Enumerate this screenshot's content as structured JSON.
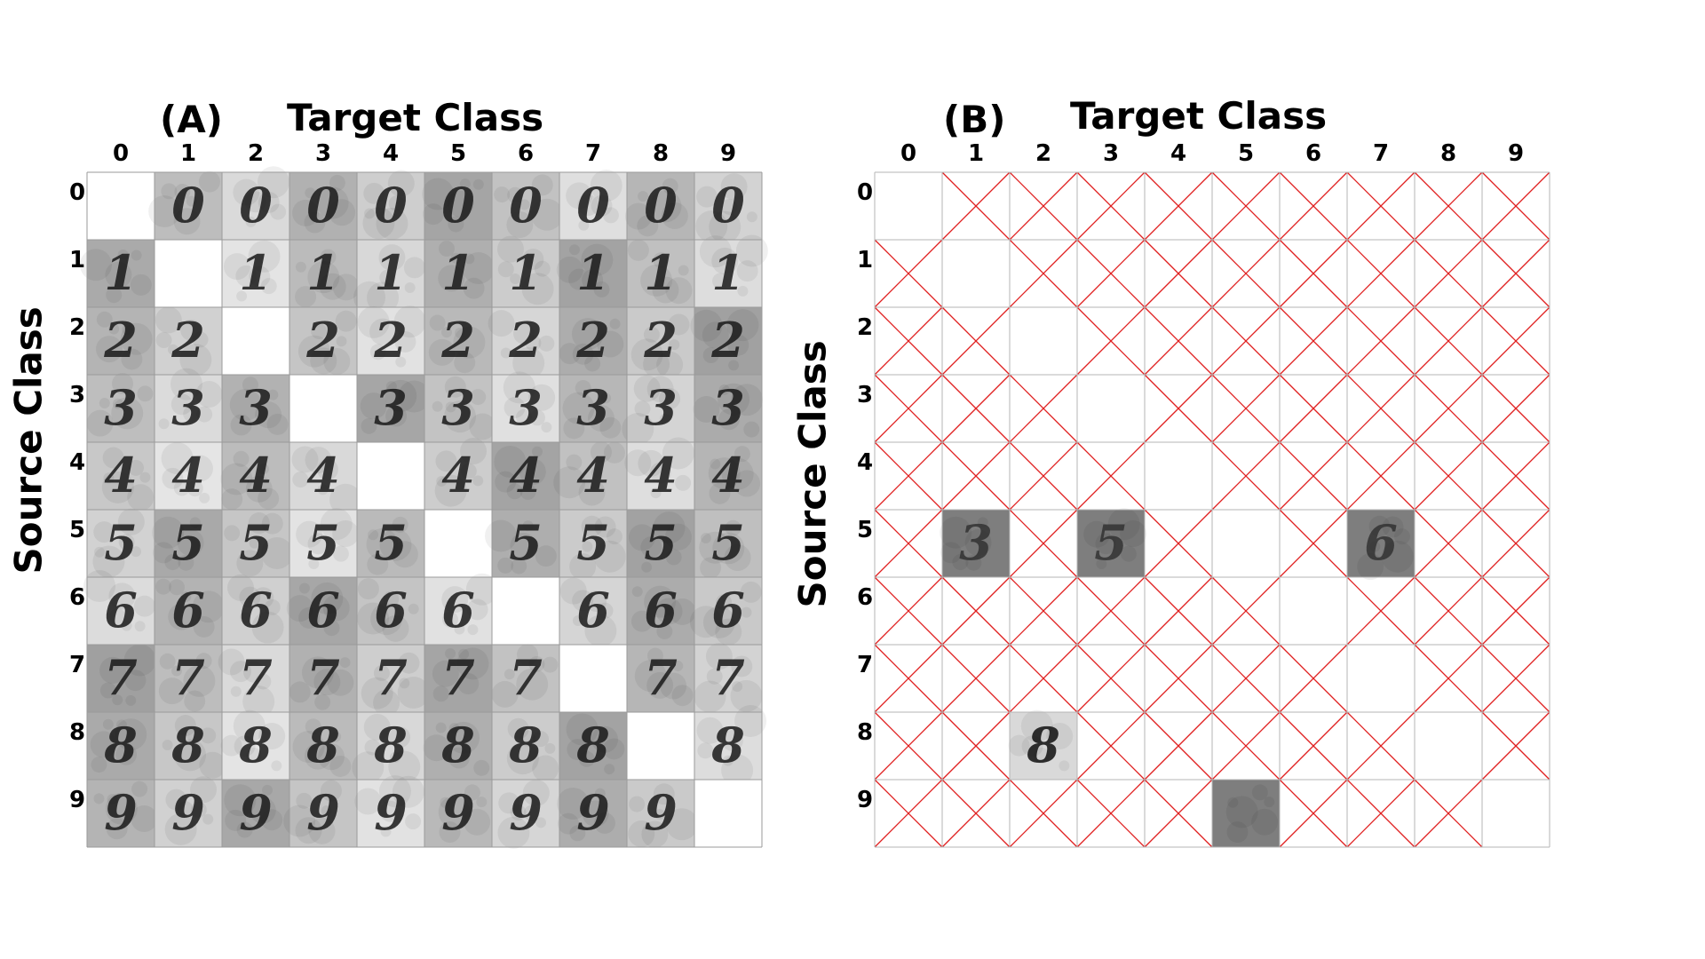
{
  "panels": [
    {
      "letter": "(A)",
      "title": "Target Class",
      "ylabel": "Source Class",
      "col_labels": [
        "0",
        "1",
        "2",
        "3",
        "4",
        "5",
        "6",
        "7",
        "8",
        "9"
      ],
      "row_labels": [
        "0",
        "1",
        "2",
        "3",
        "4",
        "5",
        "6",
        "7",
        "8",
        "9"
      ]
    },
    {
      "letter": "(B)",
      "title": "Target Class",
      "ylabel": "Source Class",
      "col_labels": [
        "0",
        "1",
        "2",
        "3",
        "4",
        "5",
        "6",
        "7",
        "8",
        "9"
      ],
      "row_labels": [
        "0",
        "1",
        "2",
        "3",
        "4",
        "5",
        "6",
        "7",
        "8",
        "9"
      ]
    }
  ],
  "grid_a": {
    "rows": 10,
    "cols": 10,
    "empty_cells": "diagonal",
    "cell_content": "source digit glyph on grey noise",
    "colors": {
      "grid_line": "#9a9a9a"
    }
  },
  "grid_b": {
    "rows": 10,
    "cols": 10,
    "empty_cells": "diagonal",
    "image_cells": [
      {
        "row": 5,
        "col": 1,
        "glyph": "3"
      },
      {
        "row": 5,
        "col": 3,
        "glyph": "5"
      },
      {
        "row": 5,
        "col": 7,
        "glyph": "6"
      },
      {
        "row": 8,
        "col": 2,
        "glyph": "8"
      },
      {
        "row": 9,
        "col": 5,
        "glyph": ""
      }
    ],
    "failed_mark": "red-x-icon",
    "colors": {
      "grid_line": "#b5b5b5",
      "x_mark": "#e02020"
    }
  }
}
